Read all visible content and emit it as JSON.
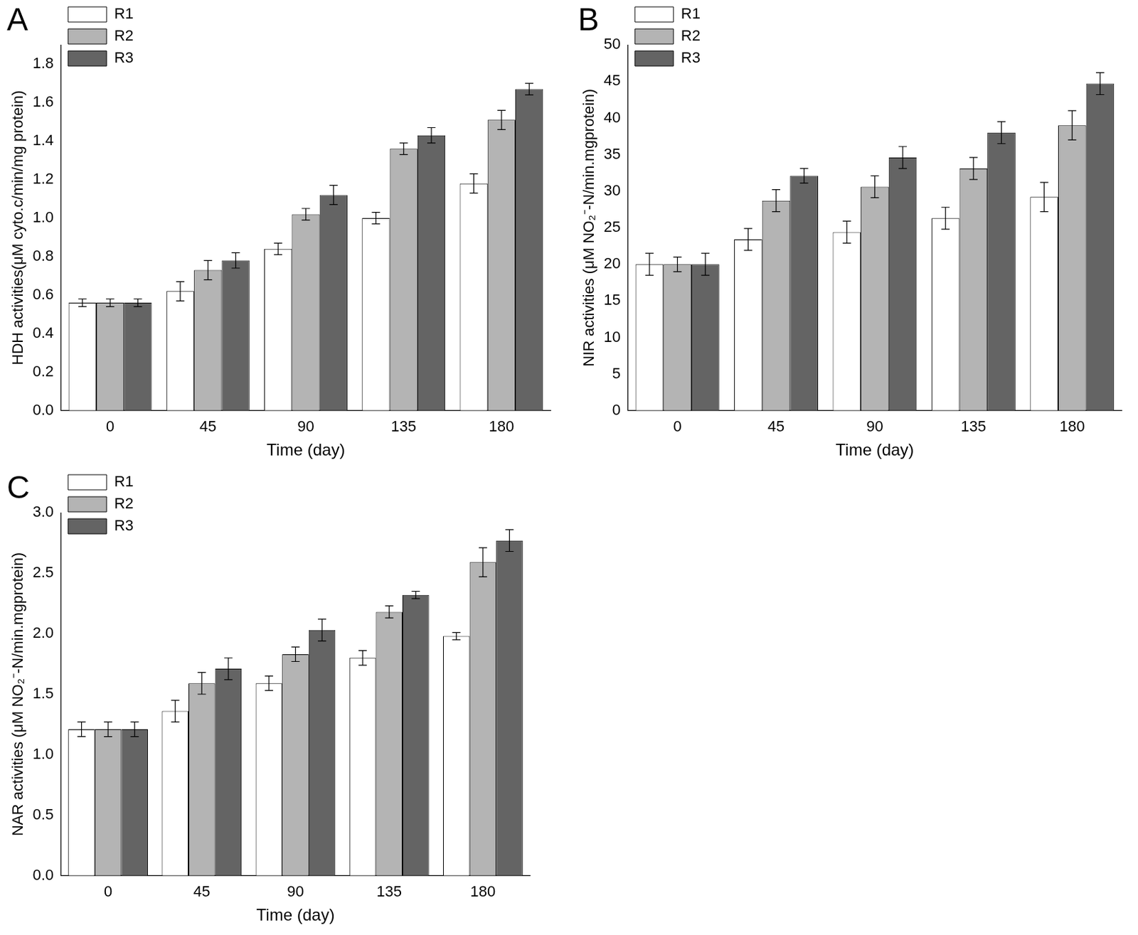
{
  "chart_data": [
    {
      "type": "bar",
      "title": "A",
      "x_label": "Time (day)",
      "y_label": "HDH activities(μM cyto.c/min/mg protein)",
      "categories": [
        "0",
        "45",
        "90",
        "135",
        "180"
      ],
      "series": [
        {
          "name": "R1",
          "color": "#ffffff",
          "values": [
            0.56,
            0.62,
            0.84,
            1.0,
            1.18
          ],
          "errors": [
            0.02,
            0.05,
            0.03,
            0.03,
            0.05
          ]
        },
        {
          "name": "R2",
          "color": "#b4b4b4",
          "values": [
            0.56,
            0.73,
            1.02,
            1.36,
            1.51
          ],
          "errors": [
            0.02,
            0.05,
            0.03,
            0.03,
            0.05
          ]
        },
        {
          "name": "R3",
          "color": "#646464",
          "values": [
            0.56,
            0.78,
            1.12,
            1.43,
            1.67
          ],
          "errors": [
            0.02,
            0.04,
            0.05,
            0.04,
            0.03
          ]
        }
      ],
      "ylim": [
        0,
        1.9
      ],
      "yticks": [
        {
          "value": 0,
          "label": "0.0"
        },
        0.2,
        0.4,
        0.6,
        0.8,
        {
          "value": 1,
          "label": "1.0"
        },
        1.2,
        1.4,
        1.6,
        1.8
      ],
      "grid": false,
      "legend": "upper left"
    },
    {
      "type": "bar",
      "title": "B",
      "x_label": "Time (day)",
      "y_label": "NIR activities (μM NO₂⁻-N/min.mgprotein)",
      "categories": [
        "0",
        "45",
        "90",
        "135",
        "180"
      ],
      "series": [
        {
          "name": "R1",
          "color": "#ffffff",
          "values": [
            20,
            23.4,
            24.4,
            26.3,
            29.2
          ],
          "errors": [
            1.5,
            1.5,
            1.5,
            1.5,
            2
          ]
        },
        {
          "name": "R2",
          "color": "#b4b4b4",
          "values": [
            20,
            28.7,
            30.6,
            33.1,
            39
          ],
          "errors": [
            1,
            1.5,
            1.5,
            1.5,
            2
          ]
        },
        {
          "name": "R3",
          "color": "#646464",
          "values": [
            20,
            32.1,
            34.6,
            38,
            44.7
          ],
          "errors": [
            1.5,
            1,
            1.5,
            1.5,
            1.5
          ]
        }
      ],
      "ylim": [
        0,
        50
      ],
      "yticks": [
        0,
        5,
        10,
        15,
        20,
        25,
        30,
        35,
        40,
        45,
        50
      ],
      "grid": false,
      "legend": "upper left"
    },
    {
      "type": "bar",
      "title": "C",
      "x_label": "Time (day)",
      "y_label": "NAR activities (μM NO₂⁻-N/min.mgprotein)",
      "categories": [
        "0",
        "45",
        "90",
        "135",
        "180"
      ],
      "series": [
        {
          "name": "R1",
          "color": "#ffffff",
          "values": [
            1.21,
            1.36,
            1.59,
            1.8,
            1.98
          ],
          "errors": [
            0.06,
            0.09,
            0.06,
            0.06,
            0.03
          ]
        },
        {
          "name": "R2",
          "color": "#b4b4b4",
          "values": [
            1.21,
            1.59,
            1.83,
            2.18,
            2.59
          ],
          "errors": [
            0.06,
            0.09,
            0.06,
            0.05,
            0.12
          ]
        },
        {
          "name": "R3",
          "color": "#646464",
          "values": [
            1.21,
            1.71,
            2.03,
            2.32,
            2.77
          ],
          "errors": [
            0.06,
            0.09,
            0.09,
            0.03,
            0.09
          ]
        }
      ],
      "ylim": [
        0,
        3.0
      ],
      "yticks": [
        {
          "value": 0,
          "label": "0.0"
        },
        0.5,
        {
          "value": 1,
          "label": "1.0"
        },
        1.5,
        {
          "value": 2,
          "label": "2.0"
        },
        2.5,
        {
          "value": 3,
          "label": "3.0"
        }
      ],
      "grid": false,
      "legend": "upper left"
    }
  ]
}
